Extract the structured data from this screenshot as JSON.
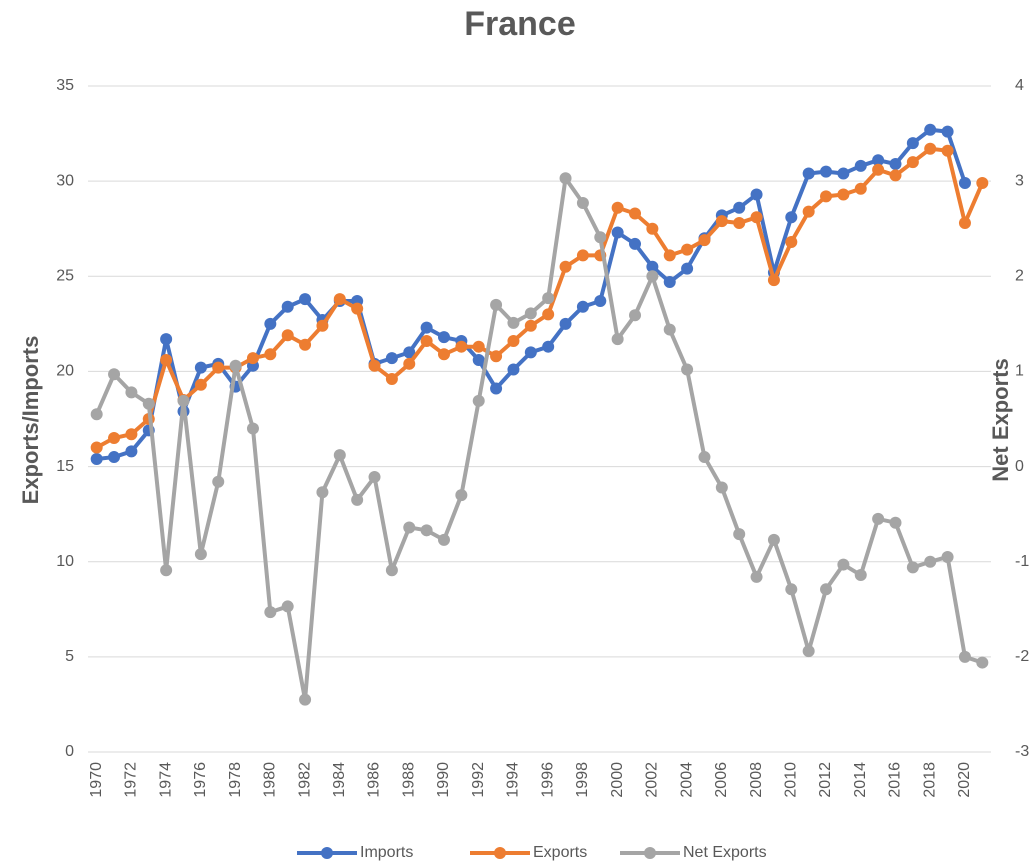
{
  "chart_data": {
    "type": "line",
    "title": "France",
    "y_label": "Exports/Imports",
    "y2_label": "Net Exports",
    "categories": [
      "1970",
      null,
      "1972",
      null,
      "1974",
      null,
      "1976",
      null,
      "1978",
      null,
      "1980",
      null,
      "1982",
      null,
      "1984",
      null,
      "1986",
      null,
      "1988",
      null,
      "1990",
      null,
      "1992",
      null,
      "1994",
      null,
      "1996",
      null,
      "1998",
      null,
      "2000",
      null,
      "2002",
      null,
      "2004",
      null,
      "2006",
      null,
      "2008",
      null,
      "2010",
      null,
      "2012",
      null,
      "2014",
      null,
      "2016",
      null,
      "2018",
      null,
      "2020",
      null
    ],
    "series": [
      {
        "name": "Imports",
        "color": "#4472c4",
        "axis": "y",
        "values": [
          15.4,
          15.5,
          15.8,
          16.9,
          21.7,
          17.9,
          20.2,
          20.4,
          19.2,
          20.3,
          22.5,
          23.4,
          23.8,
          22.7,
          23.7,
          23.7,
          20.4,
          20.7,
          21.0,
          22.3,
          21.8,
          21.6,
          20.6,
          19.1,
          20.1,
          21.0,
          21.3,
          22.5,
          23.4,
          23.7,
          27.3,
          26.7,
          25.5,
          24.7,
          25.4,
          27.0,
          28.2,
          28.6,
          29.3,
          25.2,
          28.1,
          30.4,
          30.5,
          30.4,
          30.8,
          31.1,
          30.9,
          32.0,
          32.7,
          32.6,
          29.9,
          null
        ]
      },
      {
        "name": "Exports",
        "color": "#ed7d31",
        "axis": "y",
        "values": [
          16.0,
          16.5,
          16.7,
          17.5,
          20.6,
          18.5,
          19.3,
          20.2,
          20.2,
          20.7,
          20.9,
          21.9,
          21.4,
          22.4,
          23.8,
          23.3,
          20.3,
          19.6,
          20.4,
          21.6,
          20.9,
          21.3,
          21.3,
          20.8,
          21.6,
          22.4,
          23.0,
          25.5,
          26.1,
          26.1,
          28.6,
          28.3,
          27.5,
          26.1,
          26.4,
          26.9,
          27.9,
          27.8,
          28.1,
          24.8,
          26.8,
          28.4,
          29.2,
          29.3,
          29.6,
          30.6,
          30.3,
          31.0,
          31.7,
          31.6,
          27.8,
          29.9
        ]
      },
      {
        "name": "Net Exports",
        "color": "#a5a5a5",
        "axis": "y2",
        "values": [
          0.55,
          0.97,
          0.78,
          0.66,
          -1.09,
          0.69,
          -0.92,
          -0.16,
          1.06,
          0.4,
          -1.53,
          -1.47,
          -2.45,
          -0.27,
          0.12,
          -0.35,
          -0.11,
          -1.09,
          -0.64,
          -0.67,
          -0.77,
          -0.3,
          0.69,
          1.7,
          1.51,
          1.61,
          1.77,
          3.03,
          2.77,
          2.41,
          1.34,
          1.59,
          2.0,
          1.44,
          1.02,
          0.1,
          -0.22,
          -0.71,
          -1.16,
          -0.77,
          -1.29,
          -1.94,
          -1.29,
          -1.03,
          -1.14,
          -0.55,
          -0.59,
          -1.06,
          -1.0,
          -0.95,
          -2.0,
          -2.06
        ]
      }
    ],
    "ylim": [
      0,
      35
    ],
    "yticks": [
      0,
      5,
      10,
      15,
      20,
      25,
      30,
      35
    ],
    "y2lim": [
      -3,
      4
    ],
    "y2ticks": [
      -3,
      -2,
      -1,
      0,
      1,
      2,
      3,
      4
    ],
    "grid": true,
    "legend": "bottom"
  }
}
